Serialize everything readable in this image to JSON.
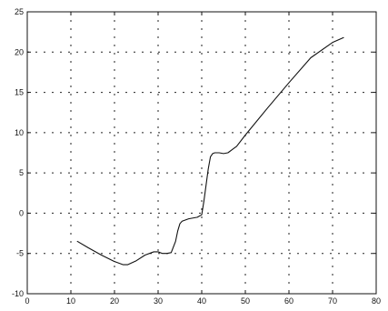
{
  "chart_data": {
    "type": "line",
    "title": "",
    "xlabel": "",
    "ylabel": "",
    "xlim": [
      0,
      80
    ],
    "ylim": [
      -10,
      25
    ],
    "x_ticks": [
      0,
      10,
      20,
      30,
      40,
      50,
      60,
      70,
      80
    ],
    "y_ticks": [
      -10,
      -5,
      0,
      5,
      10,
      15,
      20,
      25
    ],
    "grid": true,
    "legend": "none",
    "line_color": "#111111",
    "series": [
      {
        "x": [
          11.5,
          14,
          17,
          20,
          22,
          23,
          25,
          27,
          29,
          30,
          31,
          32,
          33,
          34,
          34.5,
          35,
          35.5,
          36,
          37,
          38,
          39,
          40,
          40.5,
          41,
          41.5,
          42,
          42.5,
          43,
          44,
          45,
          46,
          47,
          48,
          50,
          55,
          60,
          65,
          70,
          72.5
        ],
        "y": [
          -3.5,
          -4.3,
          -5.2,
          -6.0,
          -6.4,
          -6.4,
          -5.9,
          -5.2,
          -4.8,
          -4.8,
          -5.0,
          -5.0,
          -4.9,
          -3.5,
          -2.2,
          -1.3,
          -1.0,
          -0.9,
          -0.7,
          -0.6,
          -0.5,
          -0.2,
          1.5,
          3.5,
          5.5,
          7.0,
          7.4,
          7.5,
          7.5,
          7.4,
          7.5,
          7.9,
          8.3,
          9.7,
          13.0,
          16.2,
          19.3,
          21.2,
          21.8
        ]
      }
    ]
  }
}
